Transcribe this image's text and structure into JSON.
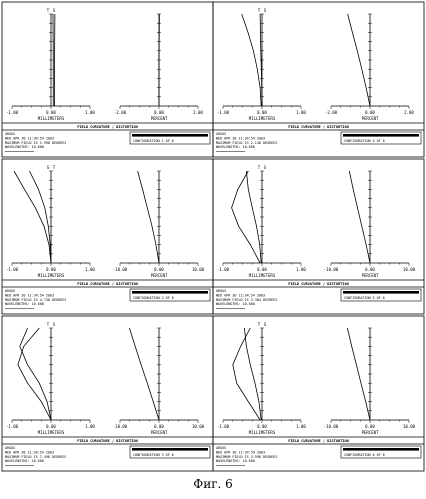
{
  "figure_caption": "Фиг. 6",
  "chart_data": [
    {
      "type": "line",
      "header": "FIELD CURVATURE / DISTORTION",
      "info_lines": [
        "ARGUS",
        "WED APR 30 11:34:54 2003",
        "MAXIMUM FIELD IS 1.998 DEGREES",
        "WAVELENGTHS: 10.600"
      ],
      "configuration": "CONFIGURATION 1 OF 6",
      "left": {
        "xlabel": "MILLIMETERS",
        "xlim": [
          -1.0,
          1.0
        ],
        "ticks": [
          "-1.00",
          "0.00",
          "1.00"
        ],
        "marker_labels": [
          "T",
          "S"
        ],
        "series": [
          {
            "name": "T",
            "points": [
              [
                0.06,
                0.0
              ],
              [
                0.06,
                0.5
              ],
              [
                0.05,
                1.0
              ]
            ]
          },
          {
            "name": "S",
            "points": [
              [
                0.09,
                0.0
              ],
              [
                0.09,
                0.5
              ],
              [
                0.1,
                1.0
              ]
            ]
          }
        ]
      },
      "right": {
        "xlabel": "PERCENT",
        "xlim": [
          -2.0,
          2.0
        ],
        "ticks": [
          "-2.00",
          "0.00",
          "2.00"
        ],
        "series": [
          {
            "points": [
              [
                0.0,
                0.0
              ],
              [
                0.0,
                0.5
              ],
              [
                0.02,
                1.0
              ]
            ]
          }
        ]
      }
    },
    {
      "type": "line",
      "header": "FIELD CURVATURE / DISTORTION",
      "info_lines": [
        "ARGUS",
        "WED APR 30 11:34:54 2003",
        "MAXIMUM FIELD IS 2.148 DEGREES",
        "WAVELENGTHS: 10.600"
      ],
      "configuration": "CONFIGURATION 4 OF 6",
      "left": {
        "xlabel": "MILLIMETERS",
        "xlim": [
          -1.0,
          1.0
        ],
        "ticks": [
          "-1.00",
          "0.00",
          "1.00"
        ],
        "marker_labels": [
          "T",
          "S"
        ],
        "series": [
          {
            "name": "T",
            "points": [
              [
                -0.02,
                0.0
              ],
              [
                -0.05,
                0.2
              ],
              [
                -0.12,
                0.4
              ],
              [
                -0.22,
                0.6
              ],
              [
                -0.36,
                0.8
              ],
              [
                -0.52,
                1.0
              ]
            ]
          },
          {
            "name": "S",
            "points": [
              [
                0.0,
                0.0
              ],
              [
                -0.01,
                0.3
              ],
              [
                -0.03,
                0.6
              ],
              [
                -0.05,
                1.0
              ]
            ]
          }
        ]
      },
      "right": {
        "xlabel": "PERCENT",
        "xlim": [
          -2.0,
          2.0
        ],
        "ticks": [
          "-2.00",
          "0.00",
          "2.00"
        ],
        "series": [
          {
            "points": [
              [
                0.0,
                0.0
              ],
              [
                -0.2,
                0.2
              ],
              [
                -0.42,
                0.4
              ],
              [
                -0.65,
                0.6
              ],
              [
                -0.9,
                0.8
              ],
              [
                -1.15,
                1.0
              ]
            ]
          }
        ]
      }
    },
    {
      "type": "line",
      "header": "FIELD CURVATURE / DISTORTION",
      "info_lines": [
        "ARGUS",
        "WED APR 30 11:34:54 2003",
        "MAXIMUM FIELD IS 4.738 DEGREES",
        "WAVELENGTHS: 10.600"
      ],
      "configuration": "CONFIGURATION 2 OF 6",
      "left": {
        "xlabel": "MILLIMETERS",
        "xlim": [
          -1.0,
          1.0
        ],
        "ticks": [
          "-1.00",
          "0.00",
          "1.00"
        ],
        "marker_labels": [
          "S",
          "T"
        ],
        "series": [
          {
            "name": "T",
            "points": [
              [
                0.0,
                0.0
              ],
              [
                -0.05,
                0.2
              ],
              [
                -0.18,
                0.4
              ],
              [
                -0.4,
                0.6
              ],
              [
                -0.68,
                0.8
              ],
              [
                -0.95,
                1.0
              ]
            ]
          },
          {
            "name": "S",
            "points": [
              [
                0.0,
                0.0
              ],
              [
                -0.02,
                0.2
              ],
              [
                -0.07,
                0.4
              ],
              [
                -0.16,
                0.6
              ],
              [
                -0.32,
                0.8
              ],
              [
                -0.55,
                1.0
              ]
            ]
          }
        ]
      },
      "right": {
        "xlabel": "PERCENT",
        "xlim": [
          -10.0,
          10.0
        ],
        "ticks": [
          "-10.00",
          "0.00",
          "10.00"
        ],
        "series": [
          {
            "points": [
              [
                0.0,
                0.0
              ],
              [
                -0.8,
                0.2
              ],
              [
                -1.8,
                0.4
              ],
              [
                -3.0,
                0.6
              ],
              [
                -4.2,
                0.8
              ],
              [
                -5.5,
                1.0
              ]
            ]
          }
        ]
      }
    },
    {
      "type": "line",
      "header": "FIELD CURVATURE / DISTORTION",
      "info_lines": [
        "ARGUS",
        "WED APR 30 11:34:54 2003",
        "MAXIMUM FIELD IS 3.384 DEGREES",
        "WAVELENGTHS: 10.600"
      ],
      "configuration": "CONFIGURATION 5 OF 6",
      "left": {
        "xlabel": "MILLIMETERS",
        "xlim": [
          -1.0,
          1.0
        ],
        "ticks": [
          "-1.00",
          "0.00",
          "1.00"
        ],
        "marker_labels": [
          "T",
          "S"
        ],
        "series": [
          {
            "name": "T",
            "points": [
              [
                -0.05,
                0.0
              ],
              [
                -0.3,
                0.2
              ],
              [
                -0.6,
                0.4
              ],
              [
                -0.78,
                0.6
              ],
              [
                -0.62,
                0.8
              ],
              [
                -0.35,
                1.0
              ]
            ]
          },
          {
            "name": "S",
            "points": [
              [
                -0.02,
                0.0
              ],
              [
                -0.06,
                0.2
              ],
              [
                -0.14,
                0.4
              ],
              [
                -0.25,
                0.6
              ],
              [
                -0.35,
                0.8
              ],
              [
                -0.4,
                1.0
              ]
            ]
          }
        ]
      },
      "right": {
        "xlabel": "PERCENT",
        "xlim": [
          -10.0,
          10.0
        ],
        "ticks": [
          "-10.00",
          "0.00",
          "10.00"
        ],
        "series": [
          {
            "points": [
              [
                0.0,
                0.0
              ],
              [
                -1.0,
                0.2
              ],
              [
                -2.1,
                0.4
              ],
              [
                -3.2,
                0.6
              ],
              [
                -4.3,
                0.8
              ],
              [
                -5.3,
                1.0
              ]
            ]
          }
        ]
      }
    },
    {
      "type": "line",
      "header": "FIELD CURVATURE / DISTORTION",
      "info_lines": [
        "ARGUS",
        "WED APR 30 11:34:54 2003",
        "MAXIMUM FIELD IS 7.498 DEGREES",
        "WAVELENGTHS: 10.600"
      ],
      "configuration": "CONFIGURATION 3 OF 6",
      "left": {
        "xlabel": "MILLIMETERS",
        "xlim": [
          -1.0,
          1.0
        ],
        "ticks": [
          "-1.00",
          "0.00",
          "1.00"
        ],
        "marker_labels": [
          "T",
          "S"
        ],
        "series": [
          {
            "name": "T",
            "points": [
              [
                0.0,
                0.0
              ],
              [
                -0.25,
                0.2
              ],
              [
                -0.6,
                0.4
              ],
              [
                -0.85,
                0.6
              ],
              [
                -0.7,
                0.8
              ],
              [
                -0.3,
                1.0
              ]
            ]
          },
          {
            "name": "S",
            "points": [
              [
                0.0,
                0.0
              ],
              [
                -0.1,
                0.2
              ],
              [
                -0.3,
                0.4
              ],
              [
                -0.6,
                0.6
              ],
              [
                -0.8,
                0.8
              ],
              [
                -0.6,
                1.0
              ]
            ]
          }
        ]
      },
      "right": {
        "xlabel": "PERCENT",
        "xlim": [
          -10.0,
          10.0
        ],
        "ticks": [
          "-10.00",
          "0.00",
          "10.00"
        ],
        "series": [
          {
            "points": [
              [
                0.0,
                0.0
              ],
              [
                -1.5,
                0.2
              ],
              [
                -3.0,
                0.4
              ],
              [
                -4.6,
                0.6
              ],
              [
                -6.1,
                0.8
              ],
              [
                -7.6,
                1.0
              ]
            ]
          }
        ]
      }
    },
    {
      "type": "line",
      "header": "FIELD CURVATURE / DISTORTION",
      "info_lines": [
        "ARGUS",
        "WED APR 30 11:34:54 2003",
        "MAXIMUM FIELD IS 3.998 DEGREES",
        "WAVELENGTHS: 10.600"
      ],
      "configuration": "CONFIGURATION 6 OF 6",
      "left": {
        "xlabel": "MILLIMETERS",
        "xlim": [
          -1.0,
          1.0
        ],
        "ticks": [
          "-1.00",
          "0.00",
          "1.00"
        ],
        "marker_labels": [
          "T",
          "S"
        ],
        "series": [
          {
            "name": "T",
            "points": [
              [
                -0.05,
                0.0
              ],
              [
                -0.35,
                0.2
              ],
              [
                -0.65,
                0.4
              ],
              [
                -0.75,
                0.6
              ],
              [
                -0.55,
                0.8
              ],
              [
                -0.3,
                1.0
              ]
            ]
          },
          {
            "name": "S",
            "points": [
              [
                -0.02,
                0.0
              ],
              [
                -0.08,
                0.2
              ],
              [
                -0.18,
                0.4
              ],
              [
                -0.3,
                0.6
              ],
              [
                -0.4,
                0.8
              ],
              [
                -0.45,
                1.0
              ]
            ]
          }
        ]
      },
      "right": {
        "xlabel": "PERCENT",
        "xlim": [
          -10.0,
          10.0
        ],
        "ticks": [
          "-10.00",
          "0.00",
          "10.00"
        ],
        "series": [
          {
            "points": [
              [
                0.0,
                0.0
              ],
              [
                -1.1,
                0.2
              ],
              [
                -2.3,
                0.4
              ],
              [
                -3.5,
                0.6
              ],
              [
                -4.7,
                0.8
              ],
              [
                -5.8,
                1.0
              ]
            ]
          }
        ]
      }
    }
  ]
}
